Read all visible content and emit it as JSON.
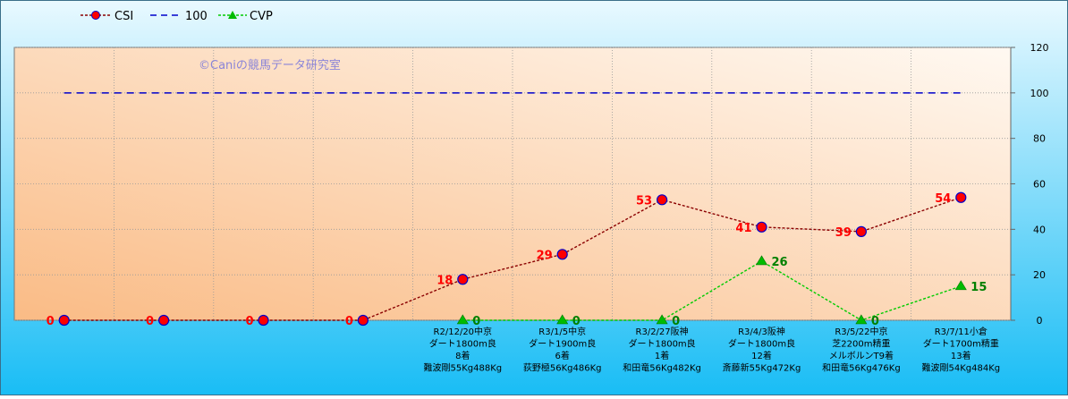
{
  "legend": {
    "csi_label": "CSI",
    "ref_label": "100",
    "cvp_label": "CVP"
  },
  "watermark": "©Caniの競馬データ研究室",
  "colors": {
    "csi_line": "#8B0000",
    "csi_marker": "#FF0000",
    "csi_marker_edge": "#0000CC",
    "csi_label": "#FF0000",
    "ref_line": "#0000CC",
    "cvp_line": "#00CC00",
    "cvp_marker": "#00BB00",
    "cvp_label": "#008000",
    "frame_bg_top": "#E9F9FF",
    "frame_bg_bottom": "#19BDF5",
    "plot_bg_light": "#FFF9F2",
    "plot_bg_dark": "#FABB85",
    "grid": "#999999"
  },
  "chart_data": {
    "type": "line",
    "ylim": [
      0,
      120
    ],
    "yticks": [
      0,
      20,
      40,
      60,
      80,
      100,
      120
    ],
    "y_axis_side": "right",
    "grid": true,
    "legend_position": "top-left",
    "categories": [
      [],
      [],
      [],
      [],
      [
        "R2/12/20中京",
        "ダート1800m良",
        "8着",
        "難波剛55Kg488Kg"
      ],
      [
        "R3/1/5中京",
        "ダート1900m良",
        "6着",
        "荻野極56Kg486Kg"
      ],
      [
        "R3/2/27阪神",
        "ダート1800m良",
        "1着",
        "和田竜56Kg482Kg"
      ],
      [
        "R3/4/3阪神",
        "ダート1800m良",
        "12着",
        "斎藤新55Kg472Kg"
      ],
      [
        "R3/5/22中京",
        "芝2200m精重",
        "メルボルンT9着",
        "和田竜56Kg476Kg"
      ],
      [
        "R3/7/11小倉",
        "ダート1700m精重",
        "13着",
        "難波剛54Kg484Kg"
      ]
    ],
    "series": [
      {
        "name": "CSI",
        "values": [
          0,
          0,
          0,
          0,
          18,
          29,
          53,
          41,
          39,
          54
        ]
      },
      {
        "name": "100",
        "values": [
          100,
          100,
          100,
          100,
          100,
          100,
          100,
          100,
          100,
          100
        ]
      },
      {
        "name": "CVP",
        "values": [
          null,
          null,
          null,
          null,
          0,
          0,
          0,
          26,
          0,
          15
        ]
      }
    ]
  }
}
